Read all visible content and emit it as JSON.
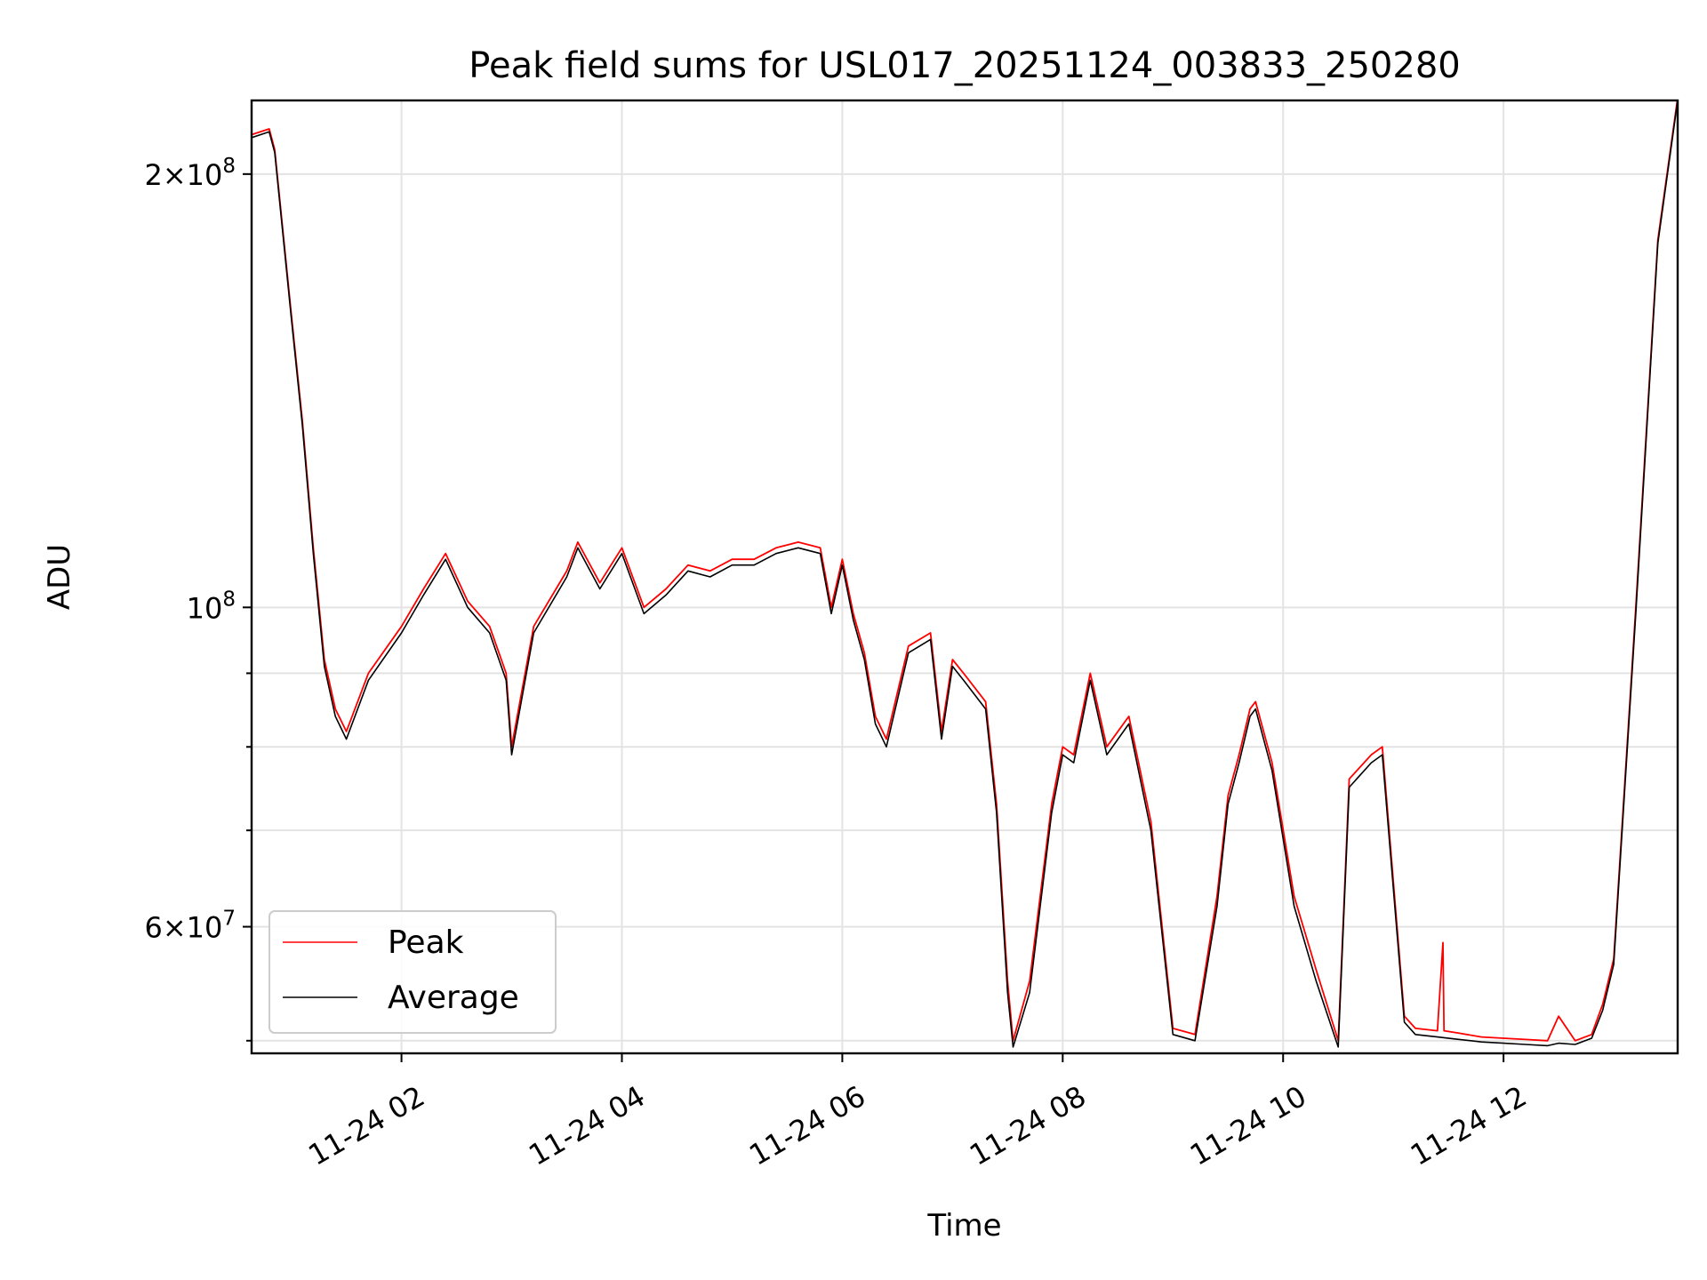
{
  "chart_data": {
    "type": "line",
    "title": "Peak field sums for USL017_20251124_003833_250280",
    "xlabel": "Time",
    "ylabel": "ADU",
    "yscale": "log",
    "xlim": [
      0.64,
      13.58
    ],
    "ylim": [
      49000000,
      225000000
    ],
    "grid": true,
    "legend_position": "lower-left",
    "x_ticks": [
      {
        "value": 2,
        "label": "11-24 02"
      },
      {
        "value": 4,
        "label": "11-24 04"
      },
      {
        "value": 6,
        "label": "11-24 06"
      },
      {
        "value": 8,
        "label": "11-24 08"
      },
      {
        "value": 10,
        "label": "11-24 10"
      },
      {
        "value": 12,
        "label": "11-24 12"
      }
    ],
    "y_major_ticks": [
      {
        "value": 200000000,
        "base": "2×10",
        "exp": "8"
      },
      {
        "value": 100000000,
        "base": "10",
        "exp": "8"
      },
      {
        "value": 60000000,
        "base": "6×10",
        "exp": "7"
      }
    ],
    "y_minor_ticks": [
      50000000,
      70000000,
      80000000,
      90000000
    ],
    "series": [
      {
        "name": "Peak",
        "color": "#ff0000",
        "x": [
          0.64,
          0.8,
          0.85,
          1.0,
          1.1,
          1.2,
          1.3,
          1.4,
          1.5,
          1.7,
          2.0,
          2.2,
          2.4,
          2.6,
          2.8,
          2.95,
          3.0,
          3.2,
          3.5,
          3.6,
          3.8,
          4.0,
          4.2,
          4.4,
          4.6,
          4.8,
          5.0,
          5.2,
          5.4,
          5.6,
          5.8,
          5.9,
          6.0,
          6.1,
          6.2,
          6.3,
          6.4,
          6.6,
          6.8,
          6.9,
          7.0,
          7.1,
          7.3,
          7.4,
          7.5,
          7.55,
          7.7,
          7.9,
          8.0,
          8.1,
          8.25,
          8.4,
          8.6,
          8.8,
          9.0,
          9.2,
          9.4,
          9.5,
          9.6,
          9.7,
          9.75,
          9.9,
          10.1,
          10.3,
          10.5,
          10.6,
          10.8,
          10.9,
          11.1,
          11.2,
          11.4,
          11.45,
          11.46,
          11.6,
          11.8,
          12.0,
          12.2,
          12.4,
          12.5,
          12.65,
          12.8,
          12.9,
          13.0,
          13.2,
          13.4,
          13.58
        ],
        "y": [
          213000000,
          215000000,
          208000000,
          160000000,
          135000000,
          110000000,
          92000000,
          85000000,
          82000000,
          90000000,
          97000000,
          103000000,
          109000000,
          101000000,
          97000000,
          90000000,
          80000000,
          97000000,
          106000000,
          111000000,
          104000000,
          110000000,
          100000000,
          103000000,
          107000000,
          106000000,
          108000000,
          108000000,
          110000000,
          111000000,
          110000000,
          100000000,
          108000000,
          99000000,
          93000000,
          84000000,
          81000000,
          94000000,
          96000000,
          82000000,
          92000000,
          90000000,
          86000000,
          73000000,
          55000000,
          50000000,
          55000000,
          73000000,
          80000000,
          79000000,
          90000000,
          80000000,
          84000000,
          71000000,
          51000000,
          50500000,
          63000000,
          74000000,
          79000000,
          85000000,
          86000000,
          78000000,
          63000000,
          56000000,
          50000000,
          76000000,
          79000000,
          80000000,
          52000000,
          51000000,
          50800000,
          58500000,
          50800000,
          50600000,
          50300000,
          50200000,
          50100000,
          50000000,
          52000000,
          50000000,
          50500000,
          53000000,
          57000000,
          100000000,
          180000000,
          226000000
        ]
      },
      {
        "name": "Average",
        "color": "#000000",
        "x": [
          0.64,
          0.8,
          0.85,
          1.0,
          1.1,
          1.2,
          1.3,
          1.4,
          1.5,
          1.7,
          2.0,
          2.2,
          2.4,
          2.6,
          2.8,
          2.95,
          3.0,
          3.2,
          3.5,
          3.6,
          3.8,
          4.0,
          4.2,
          4.4,
          4.6,
          4.8,
          5.0,
          5.2,
          5.4,
          5.6,
          5.8,
          5.9,
          6.0,
          6.1,
          6.2,
          6.3,
          6.4,
          6.6,
          6.8,
          6.9,
          7.0,
          7.1,
          7.3,
          7.4,
          7.5,
          7.55,
          7.7,
          7.9,
          8.0,
          8.1,
          8.25,
          8.4,
          8.6,
          8.8,
          9.0,
          9.2,
          9.4,
          9.5,
          9.6,
          9.7,
          9.75,
          9.9,
          10.1,
          10.3,
          10.5,
          10.6,
          10.8,
          10.9,
          11.1,
          11.2,
          11.4,
          11.6,
          11.8,
          12.0,
          12.2,
          12.4,
          12.5,
          12.65,
          12.8,
          12.9,
          13.0,
          13.2,
          13.4,
          13.58
        ],
        "y": [
          212000000,
          214000000,
          207000000,
          159000000,
          134000000,
          109000000,
          91000000,
          84000000,
          81000000,
          89000000,
          96000000,
          102000000,
          108000000,
          100000000,
          96000000,
          89000000,
          79000000,
          96000000,
          105000000,
          110000000,
          103000000,
          109000000,
          99000000,
          102000000,
          106000000,
          105000000,
          107000000,
          107000000,
          109000000,
          110000000,
          109000000,
          99000000,
          107000000,
          98000000,
          92000000,
          83000000,
          80000000,
          93000000,
          95000000,
          81000000,
          91000000,
          89000000,
          85000000,
          72000000,
          54000000,
          49500000,
          54000000,
          72000000,
          79000000,
          78000000,
          89000000,
          79000000,
          83000000,
          70000000,
          50500000,
          50000000,
          62000000,
          73000000,
          78000000,
          84000000,
          85000000,
          77000000,
          62000000,
          55000000,
          49500000,
          75000000,
          78000000,
          79000000,
          51500000,
          50500000,
          50300000,
          50100000,
          49900000,
          49800000,
          49700000,
          49600000,
          49800000,
          49700000,
          50200000,
          52500000,
          56500000,
          99000000,
          179000000,
          225000000
        ]
      }
    ]
  }
}
